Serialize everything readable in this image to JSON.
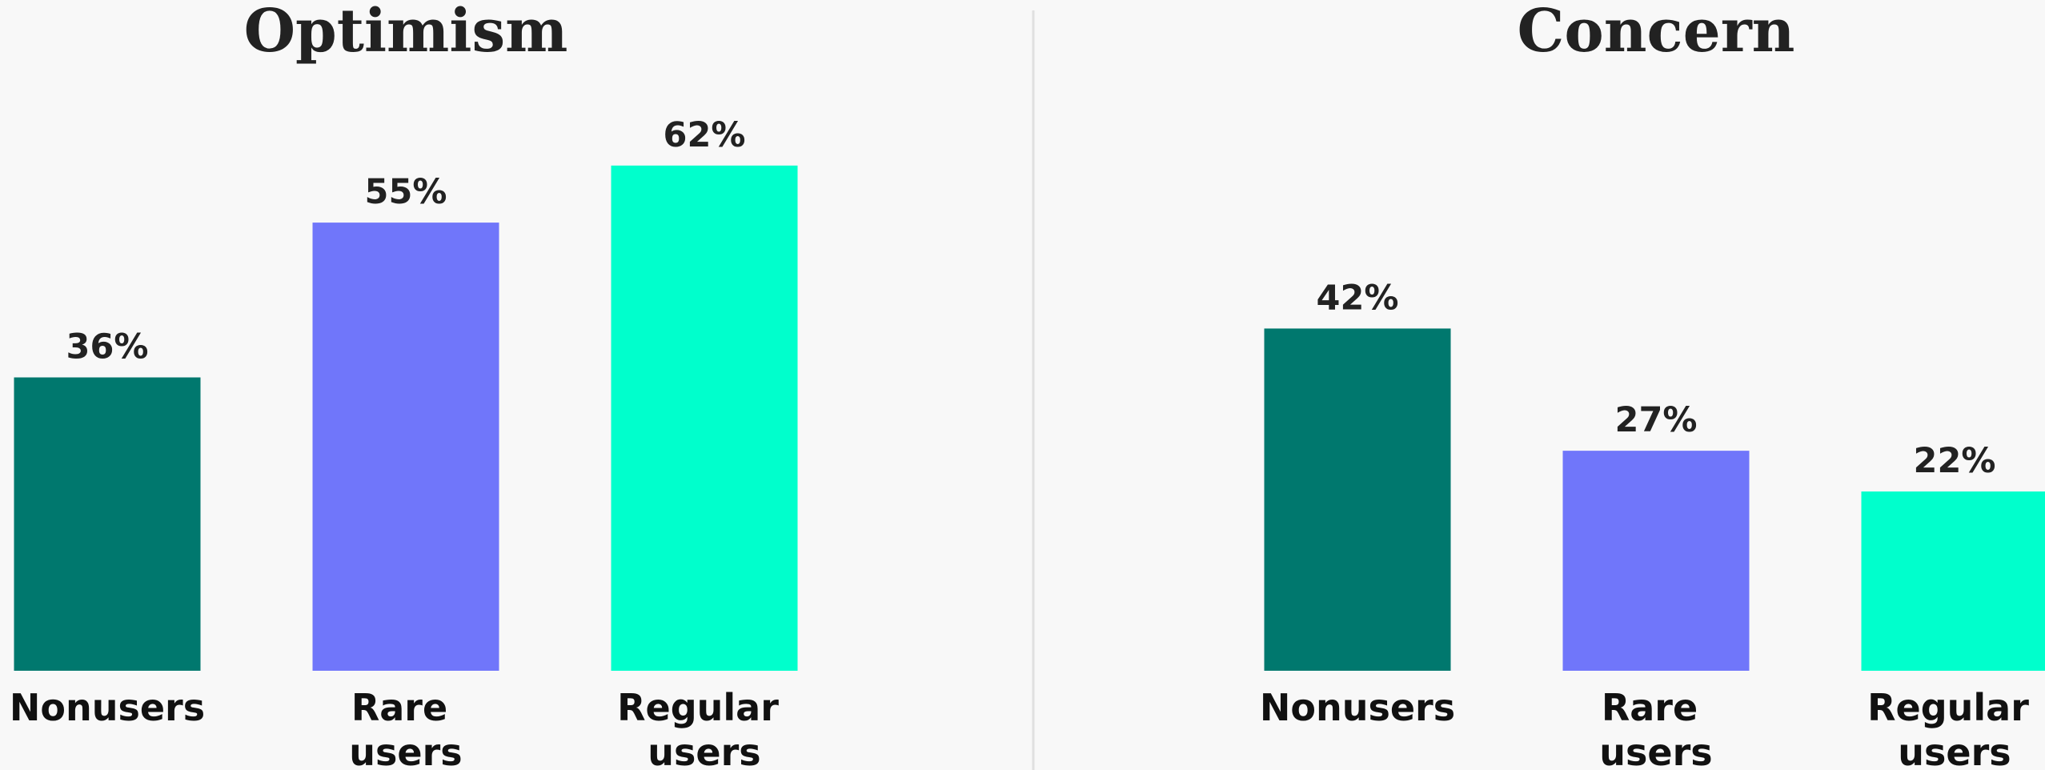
{
  "chart_data": [
    {
      "type": "bar",
      "title": "Optimism",
      "categories": [
        "Nonusers",
        "Rare users",
        "Regular users"
      ],
      "values": [
        36,
        55,
        62
      ],
      "value_labels": [
        "36%",
        "55%",
        "62%"
      ],
      "colors": [
        "#00786e",
        "#7076fa",
        "#00ffcc"
      ]
    },
    {
      "type": "bar",
      "title": "Concern",
      "categories": [
        "Nonusers",
        "Rare users",
        "Regular users"
      ],
      "values": [
        42,
        27,
        22
      ],
      "value_labels": [
        "42%",
        "27%",
        "22%"
      ],
      "colors": [
        "#00786e",
        "#7076fa",
        "#00ffcc"
      ]
    }
  ]
}
